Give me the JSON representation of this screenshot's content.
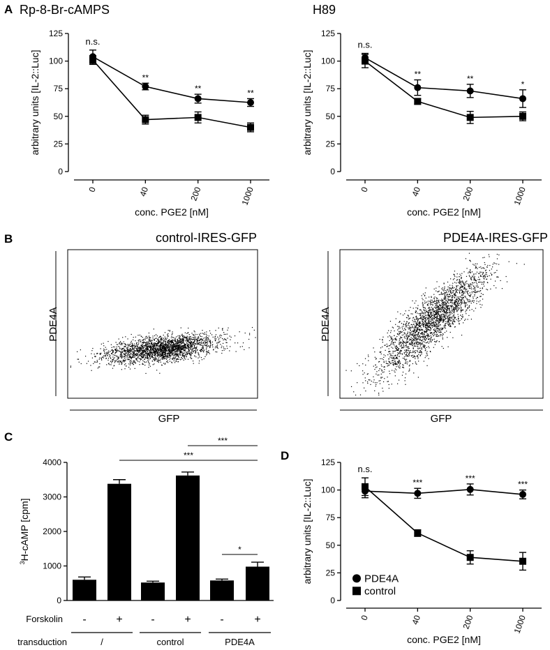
{
  "panel_labels": {
    "a": "A",
    "b": "B",
    "c": "C",
    "d": "D"
  },
  "chart_data": [
    {
      "id": "A1",
      "type": "line",
      "title": "Rp-8-Br-cAMPS",
      "xlabel": "conc. PGE2 [nM]",
      "ylabel": "arbitrary units [IL-2::Luc]",
      "categories": [
        "0",
        "40",
        "200",
        "1000"
      ],
      "ylim": [
        0,
        125
      ],
      "yticks": [
        "0",
        "25",
        "50",
        "75",
        "100",
        "125"
      ],
      "series": [
        {
          "name": "PDE4A",
          "marker": "circle",
          "values": [
            104,
            77,
            66,
            62.5
          ],
          "errors": [
            6,
            3,
            4,
            3.5
          ]
        },
        {
          "name": "control",
          "marker": "square",
          "values": [
            101,
            47,
            49,
            40
          ],
          "errors": [
            4,
            4,
            5,
            4
          ]
        }
      ],
      "annotations": [
        "n.s.",
        "**",
        "**",
        "**"
      ]
    },
    {
      "id": "A2",
      "type": "line",
      "title": "H89",
      "xlabel": "conc. PGE2 [nM]",
      "ylabel": "arbitrary units [IL-2::Luc]",
      "categories": [
        "0",
        "40",
        "200",
        "1000"
      ],
      "ylim": [
        0,
        125
      ],
      "yticks": [
        "0",
        "25",
        "50",
        "75",
        "100",
        "125"
      ],
      "series": [
        {
          "name": "PDE4A",
          "marker": "circle",
          "values": [
            103,
            76,
            73,
            66
          ],
          "errors": [
            4,
            7,
            6,
            8
          ]
        },
        {
          "name": "control",
          "marker": "square",
          "values": [
            100,
            63.5,
            49,
            50
          ],
          "errors": [
            6,
            2.5,
            5.5,
            4
          ]
        }
      ],
      "annotations": [
        "n.s.",
        "**",
        "**",
        "*"
      ]
    },
    {
      "id": "B1",
      "type": "scatter",
      "title": "control-IRES-GFP",
      "xlabel": "GFP",
      "ylabel": "PDE4A"
    },
    {
      "id": "B2",
      "type": "scatter",
      "title": "PDE4A-IRES-GFP",
      "xlabel": "GFP",
      "ylabel": "PDE4A"
    },
    {
      "id": "C",
      "type": "bar",
      "ylabel_sup": "3",
      "ylabel_rest": "H-cAMP [cpm]",
      "ylim": [
        0,
        4000
      ],
      "yticks": [
        "0",
        "1000",
        "2000",
        "3000",
        "4000"
      ],
      "values": [
        600,
        3380,
        520,
        3620,
        580,
        980
      ],
      "errors": [
        80,
        120,
        40,
        100,
        40,
        130
      ],
      "forskolin_label": "Forskolin",
      "forskolin": [
        "-",
        "+",
        "-",
        "+",
        "-",
        "+"
      ],
      "transduction_label": "transduction",
      "groups": [
        "/",
        "control",
        "PDE4A"
      ],
      "significance": [
        {
          "label": "***",
          "from": 5,
          "to": 3
        },
        {
          "label": "***",
          "from": 5,
          "to": 1
        },
        {
          "label": "*",
          "from": 5,
          "to": 4
        }
      ]
    },
    {
      "id": "D",
      "type": "line",
      "xlabel": "conc. PGE2 [nM]",
      "ylabel": "arbitrary units [IL-2::Luc]",
      "categories": [
        "0",
        "40",
        "200",
        "1000"
      ],
      "ylim": [
        0,
        125
      ],
      "yticks": [
        "0",
        "25",
        "50",
        "75",
        "100",
        "125"
      ],
      "series": [
        {
          "name": "PDE4A",
          "marker": "circle",
          "values": [
            99,
            97,
            100.5,
            96
          ],
          "errors": [
            6,
            4.5,
            5,
            4
          ]
        },
        {
          "name": "control",
          "marker": "square",
          "values": [
            103,
            61,
            39,
            35.5
          ],
          "errors": [
            8,
            3,
            6,
            8
          ]
        }
      ],
      "annotations": [
        "n.s.",
        "***",
        "***",
        "***"
      ],
      "legend": [
        "PDE4A",
        "control"
      ],
      "legend_position": "bottom-left"
    }
  ]
}
